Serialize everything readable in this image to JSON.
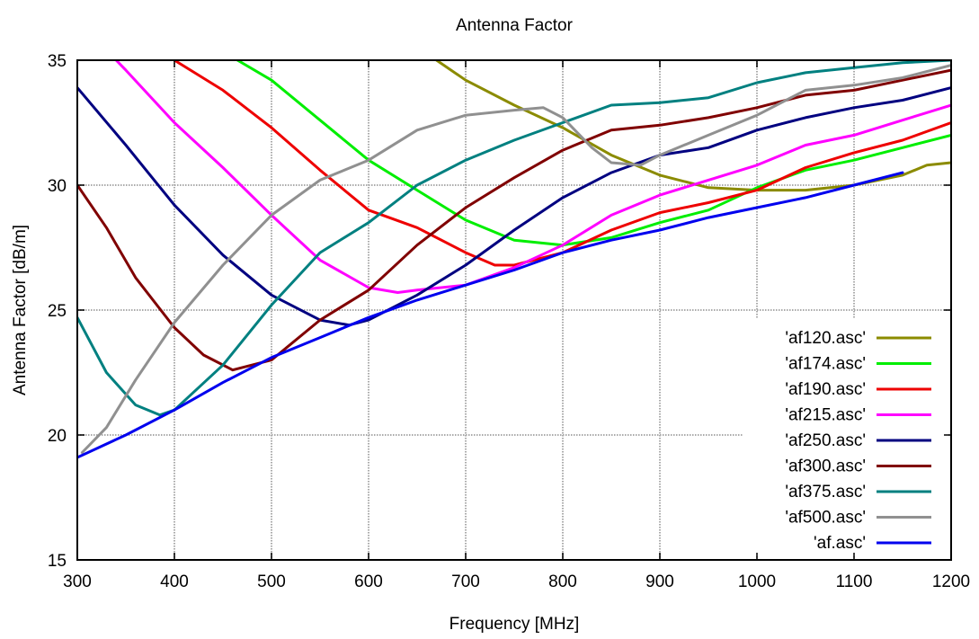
{
  "chart_data": {
    "type": "line",
    "title": "Antenna Factor",
    "xlabel": "Frequency [MHz]",
    "ylabel": "Antenna Factor [dB/m]",
    "xlim": [
      300,
      1200
    ],
    "ylim": [
      15,
      35
    ],
    "xticks": [
      300,
      400,
      500,
      600,
      700,
      800,
      900,
      1000,
      1100,
      1200
    ],
    "yticks": [
      15,
      20,
      25,
      30,
      35
    ],
    "grid": true,
    "legend_position": "bottom-right",
    "series": [
      {
        "name": "'af120.asc'",
        "color": "#8b8b00",
        "x": [
          670,
          700,
          750,
          800,
          850,
          900,
          950,
          1000,
          1050,
          1100,
          1150,
          1175,
          1200
        ],
        "y": [
          35.0,
          34.2,
          33.2,
          32.3,
          31.2,
          30.4,
          29.9,
          29.8,
          29.8,
          30.0,
          30.4,
          30.8,
          30.9
        ]
      },
      {
        "name": "'af174.asc'",
        "color": "#00ee00",
        "x": [
          465,
          500,
          550,
          600,
          650,
          700,
          750,
          800,
          850,
          900,
          950,
          1000,
          1050,
          1100,
          1150,
          1200
        ],
        "y": [
          35.0,
          34.2,
          32.6,
          31.0,
          29.8,
          28.6,
          27.8,
          27.6,
          27.9,
          28.5,
          29.0,
          29.9,
          30.6,
          31.0,
          31.5,
          32.0
        ]
      },
      {
        "name": "'af190.asc'",
        "color": "#ee0000",
        "x": [
          400,
          450,
          500,
          550,
          600,
          650,
          700,
          730,
          750,
          800,
          850,
          900,
          950,
          1000,
          1050,
          1100,
          1150,
          1200
        ],
        "y": [
          35.0,
          33.8,
          32.3,
          30.6,
          29.0,
          28.3,
          27.3,
          26.8,
          26.8,
          27.3,
          28.2,
          28.9,
          29.3,
          29.8,
          30.7,
          31.3,
          31.8,
          32.5
        ]
      },
      {
        "name": "'af215.asc'",
        "color": "#ff00ff",
        "x": [
          340,
          350,
          400,
          450,
          500,
          550,
          600,
          630,
          650,
          700,
          750,
          800,
          850,
          900,
          950,
          1000,
          1050,
          1100,
          1150,
          1200
        ],
        "y": [
          35.0,
          34.6,
          32.5,
          30.7,
          28.8,
          27.0,
          25.9,
          25.7,
          25.8,
          26.0,
          26.7,
          27.6,
          28.8,
          29.6,
          30.2,
          30.8,
          31.6,
          32.0,
          32.6,
          33.2
        ]
      },
      {
        "name": "'af250.asc'",
        "color": "#000080",
        "x": [
          300,
          350,
          400,
          450,
          500,
          550,
          580,
          600,
          650,
          700,
          750,
          800,
          850,
          900,
          950,
          1000,
          1050,
          1100,
          1150,
          1200
        ],
        "y": [
          33.9,
          31.6,
          29.2,
          27.2,
          25.6,
          24.6,
          24.4,
          24.6,
          25.6,
          26.8,
          28.2,
          29.5,
          30.5,
          31.2,
          31.5,
          32.2,
          32.7,
          33.1,
          33.4,
          33.9
        ]
      },
      {
        "name": "'af300.asc'",
        "color": "#800000",
        "x": [
          300,
          330,
          360,
          400,
          430,
          460,
          500,
          550,
          600,
          650,
          700,
          750,
          800,
          850,
          900,
          950,
          1000,
          1050,
          1100,
          1150,
          1200
        ],
        "y": [
          30.0,
          28.3,
          26.3,
          24.3,
          23.2,
          22.6,
          23.0,
          24.6,
          25.8,
          27.6,
          29.1,
          30.3,
          31.4,
          32.2,
          32.4,
          32.7,
          33.1,
          33.6,
          33.8,
          34.2,
          34.6
        ]
      },
      {
        "name": "'af375.asc'",
        "color": "#008080",
        "x": [
          300,
          330,
          360,
          385,
          400,
          450,
          500,
          550,
          600,
          650,
          700,
          750,
          800,
          850,
          900,
          950,
          1000,
          1050,
          1100,
          1150,
          1200
        ],
        "y": [
          24.7,
          22.5,
          21.2,
          20.8,
          21.0,
          22.8,
          25.2,
          27.3,
          28.5,
          30.0,
          31.0,
          31.8,
          32.5,
          33.2,
          33.3,
          33.5,
          34.1,
          34.5,
          34.7,
          34.9,
          35.0
        ]
      },
      {
        "name": "'af500.asc'",
        "color": "#909090",
        "x": [
          305,
          330,
          360,
          400,
          450,
          500,
          550,
          600,
          650,
          700,
          750,
          780,
          800,
          830,
          850,
          880,
          900,
          950,
          1000,
          1050,
          1100,
          1150,
          1200
        ],
        "y": [
          19.3,
          20.3,
          22.2,
          24.5,
          26.8,
          28.8,
          30.2,
          31.0,
          32.2,
          32.8,
          33.0,
          33.1,
          32.7,
          31.5,
          30.9,
          30.8,
          31.2,
          32.0,
          32.8,
          33.8,
          34.0,
          34.3,
          34.8
        ]
      },
      {
        "name": "'af.asc'",
        "color": "#0000ee",
        "x": [
          300,
          350,
          400,
          450,
          500,
          550,
          600,
          650,
          700,
          750,
          800,
          850,
          900,
          950,
          1000,
          1050,
          1100,
          1150
        ],
        "y": [
          19.1,
          20.0,
          21.0,
          22.1,
          23.1,
          23.9,
          24.7,
          25.4,
          26.0,
          26.6,
          27.3,
          27.8,
          28.2,
          28.7,
          29.1,
          29.5,
          30.0,
          30.5
        ]
      }
    ]
  }
}
